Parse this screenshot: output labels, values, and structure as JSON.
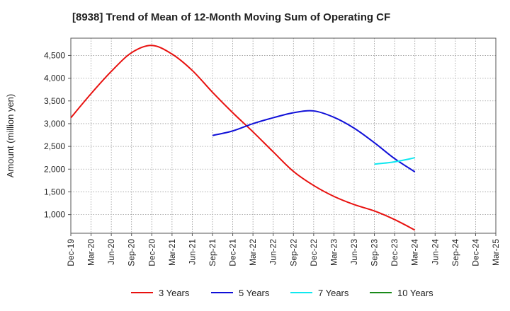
{
  "chart_data": {
    "type": "line",
    "title": "[8938]  Trend of Mean of 12-Month Moving Sum of Operating CF",
    "xlabel": "",
    "ylabel": "Amount (million yen)",
    "x_ticks": [
      "Dec-19",
      "Mar-20",
      "Jun-20",
      "Sep-20",
      "Dec-20",
      "Mar-21",
      "Jun-21",
      "Sep-21",
      "Dec-21",
      "Mar-22",
      "Jun-22",
      "Sep-22",
      "Dec-22",
      "Mar-23",
      "Jun-23",
      "Sep-23",
      "Dec-23",
      "Mar-24",
      "Jun-24",
      "Sep-24",
      "Dec-24",
      "Mar-25"
    ],
    "y_ticks": [
      1000,
      1500,
      2000,
      2500,
      3000,
      3500,
      4000,
      4500
    ],
    "y_tick_labels": [
      "1,000",
      "1,500",
      "2,000",
      "2,500",
      "3,000",
      "3,500",
      "4,000",
      "4,500"
    ],
    "ylim": [
      590,
      4880
    ],
    "grid": true,
    "legend_position": "bottom",
    "series": [
      {
        "name": "3 Years",
        "color": "#e8110f",
        "x": [
          "Dec-19",
          "Mar-20",
          "Jun-20",
          "Sep-20",
          "Dec-20",
          "Mar-21",
          "Jun-21",
          "Sep-21",
          "Dec-21",
          "Mar-22",
          "Jun-22",
          "Sep-22",
          "Dec-22",
          "Mar-23",
          "Jun-23",
          "Sep-23",
          "Dec-23",
          "Mar-24"
        ],
        "values": [
          3130,
          3660,
          4150,
          4560,
          4720,
          4530,
          4170,
          3690,
          3240,
          2820,
          2380,
          1950,
          1640,
          1400,
          1220,
          1080,
          890,
          660
        ]
      },
      {
        "name": "5 Years",
        "color": "#1010d8",
        "x": [
          "Sep-21",
          "Dec-21",
          "Mar-22",
          "Jun-22",
          "Sep-22",
          "Dec-22",
          "Mar-23",
          "Jun-23",
          "Sep-23",
          "Dec-23",
          "Mar-24"
        ],
        "values": [
          2740,
          2840,
          3000,
          3130,
          3240,
          3280,
          3140,
          2900,
          2580,
          2230,
          1940
        ]
      },
      {
        "name": "7 Years",
        "color": "#10e8f0",
        "x": [
          "Sep-23",
          "Dec-23",
          "Mar-24"
        ],
        "values": [
          2110,
          2160,
          2250
        ]
      },
      {
        "name": "10 Years",
        "color": "#1a8a1a",
        "x": [],
        "values": []
      }
    ]
  }
}
